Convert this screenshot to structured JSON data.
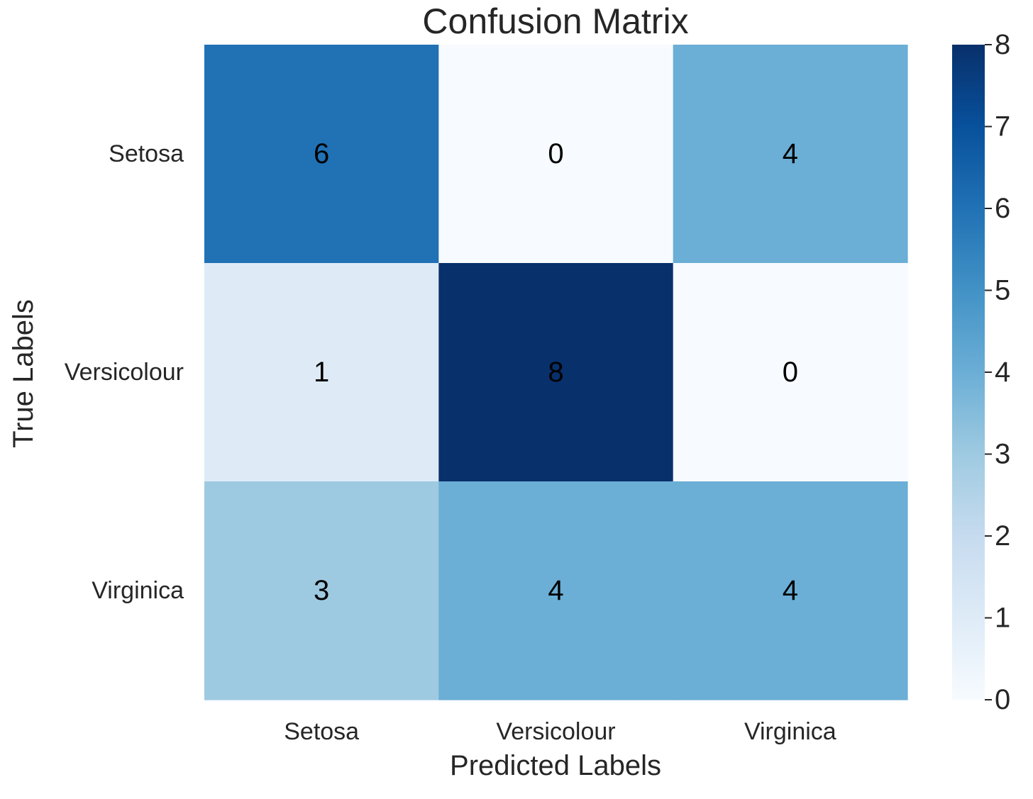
{
  "chart_data": {
    "type": "heatmap",
    "title": "Confusion Matrix",
    "xlabel": "Predicted Labels",
    "ylabel": "True Labels",
    "x_categories": [
      "Setosa",
      "Versicolour",
      "Virginica"
    ],
    "y_categories": [
      "Setosa",
      "Versicolour",
      "Virginica"
    ],
    "values": [
      [
        6,
        0,
        4
      ],
      [
        1,
        8,
        0
      ],
      [
        3,
        4,
        4
      ]
    ],
    "colormap": "Blues",
    "colorbar": {
      "min": 0,
      "max": 8,
      "ticks": [
        0,
        1,
        2,
        3,
        4,
        5,
        6,
        7,
        8
      ]
    },
    "annotations": true
  },
  "colors": {
    "cmap_low": "#f7fbff",
    "cmap_high": "#08306b",
    "text_dark": "#000000",
    "text_light": "#ffffff",
    "axis_text": "#262626"
  }
}
